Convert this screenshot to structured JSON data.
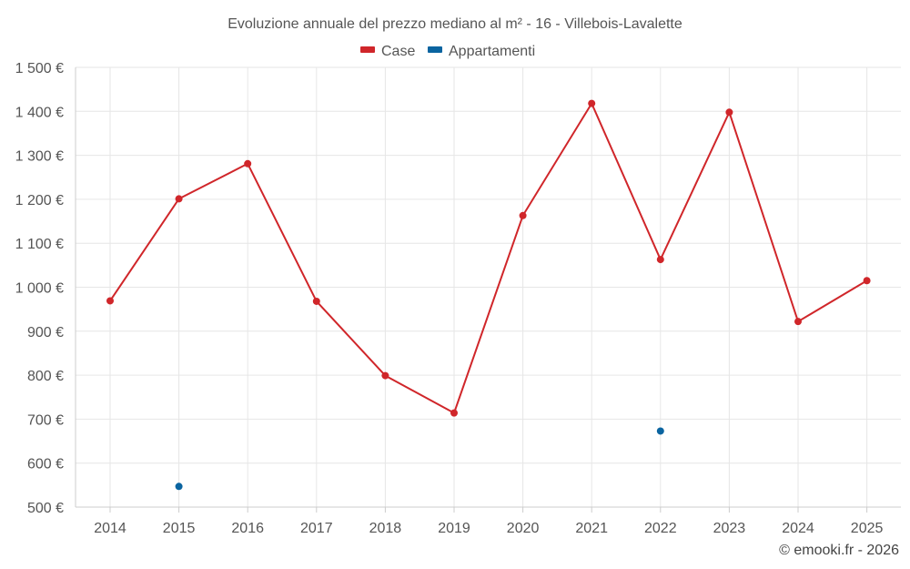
{
  "chart_data": {
    "type": "line",
    "title": "Evoluzione annuale del prezzo mediano al m² - 16 - Villebois-Lavalette",
    "categories": [
      "2014",
      "2015",
      "2016",
      "2017",
      "2018",
      "2019",
      "2020",
      "2021",
      "2022",
      "2023",
      "2024",
      "2025"
    ],
    "ylim": [
      500,
      1500
    ],
    "yticks": [
      500,
      600,
      700,
      800,
      900,
      1000,
      1100,
      1200,
      1300,
      1400,
      1500
    ],
    "ytick_labels": [
      "500 €",
      "600 €",
      "700 €",
      "800 €",
      "900 €",
      "1 000 €",
      "1 100 €",
      "1 200 €",
      "1 300 €",
      "1 400 €",
      "1 500 €"
    ],
    "xlabel": "",
    "ylabel": "",
    "grid": true,
    "legend_position": "top-center",
    "series": [
      {
        "name": "Case",
        "color": "#d0262a",
        "line": true,
        "values": [
          969,
          1201,
          1281,
          968,
          799,
          714,
          1163,
          1418,
          1063,
          1398,
          922,
          1015
        ]
      },
      {
        "name": "Appartamenti",
        "color": "#0a64a0",
        "line": false,
        "values": [
          null,
          547,
          null,
          null,
          null,
          null,
          null,
          null,
          673,
          null,
          null,
          null
        ]
      }
    ],
    "credit": "© emooki.fr - 2026"
  }
}
